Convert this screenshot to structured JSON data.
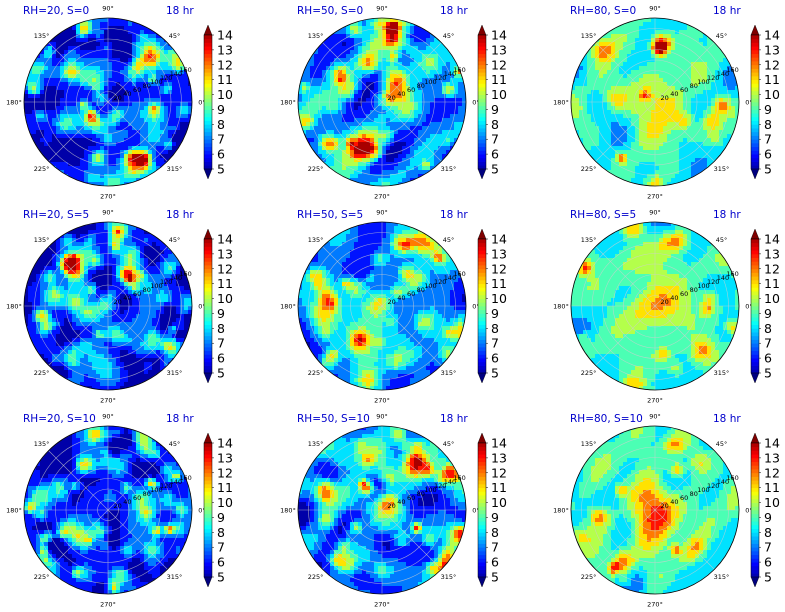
{
  "colors": {
    "label": "#0000cc",
    "colormap": [
      "#00007f",
      "#0000ff",
      "#007fff",
      "#00ffff",
      "#7fff7f",
      "#ffff00",
      "#ff7f00",
      "#ff0000",
      "#7f0000"
    ],
    "grid": "#cfcfcf"
  },
  "angle_tick_labels": [
    "0°",
    "45°",
    "90°",
    "135°",
    "180°",
    "225°",
    "270°",
    "315°"
  ],
  "radial_tick_labels": [
    "20",
    "40",
    "60",
    "80",
    "100",
    "120",
    "140",
    "160"
  ],
  "colorbar_tick_labels": [
    "5",
    "6",
    "7",
    "8",
    "9",
    "10",
    "11",
    "12",
    "13",
    "14"
  ],
  "chart_data": [
    {
      "type": "heatmap",
      "projection": "polar",
      "title": "RH=20, S=0",
      "time_label": "18 hr",
      "clim": [
        5,
        14
      ],
      "colormap": "jet",
      "mean_level": 6.0,
      "noise": 0.55,
      "hot_spots": 60,
      "center_boost": 0.0
    },
    {
      "type": "heatmap",
      "projection": "polar",
      "title": "RH=50, S=0",
      "time_label": "18 hr",
      "clim": [
        5,
        14
      ],
      "colormap": "jet",
      "mean_level": 7.3,
      "noise": 0.5,
      "hot_spots": 40,
      "center_boost": 0.3
    },
    {
      "type": "heatmap",
      "projection": "polar",
      "title": "RH=80, S=0",
      "time_label": "18 hr",
      "clim": [
        5,
        14
      ],
      "colormap": "jet",
      "mean_level": 8.5,
      "noise": 0.35,
      "hot_spots": 12,
      "center_boost": 1.0
    },
    {
      "type": "heatmap",
      "projection": "polar",
      "title": "RH=20, S=5",
      "time_label": "18 hr",
      "clim": [
        5,
        14
      ],
      "colormap": "jet",
      "mean_level": 6.0,
      "noise": 0.55,
      "hot_spots": 60,
      "center_boost": 0.0
    },
    {
      "type": "heatmap",
      "projection": "polar",
      "title": "RH=50, S=5",
      "time_label": "18 hr",
      "clim": [
        5,
        14
      ],
      "colormap": "jet",
      "mean_level": 7.3,
      "noise": 0.5,
      "hot_spots": 40,
      "center_boost": 0.3
    },
    {
      "type": "heatmap",
      "projection": "polar",
      "title": "RH=80, S=5",
      "time_label": "18 hr",
      "clim": [
        5,
        14
      ],
      "colormap": "jet",
      "mean_level": 8.6,
      "noise": 0.35,
      "hot_spots": 12,
      "center_boost": 1.2
    },
    {
      "type": "heatmap",
      "projection": "polar",
      "title": "RH=20, S=10",
      "time_label": "18 hr",
      "clim": [
        5,
        14
      ],
      "colormap": "jet",
      "mean_level": 6.0,
      "noise": 0.55,
      "hot_spots": 60,
      "center_boost": 0.0
    },
    {
      "type": "heatmap",
      "projection": "polar",
      "title": "RH=50, S=10",
      "time_label": "18 hr",
      "clim": [
        5,
        14
      ],
      "colormap": "jet",
      "mean_level": 7.3,
      "noise": 0.5,
      "hot_spots": 40,
      "center_boost": 0.5
    },
    {
      "type": "heatmap",
      "projection": "polar",
      "title": "RH=80, S=10",
      "time_label": "18 hr",
      "clim": [
        5,
        14
      ],
      "colormap": "jet",
      "mean_level": 8.6,
      "noise": 0.35,
      "hot_spots": 12,
      "center_boost": 1.4
    }
  ]
}
